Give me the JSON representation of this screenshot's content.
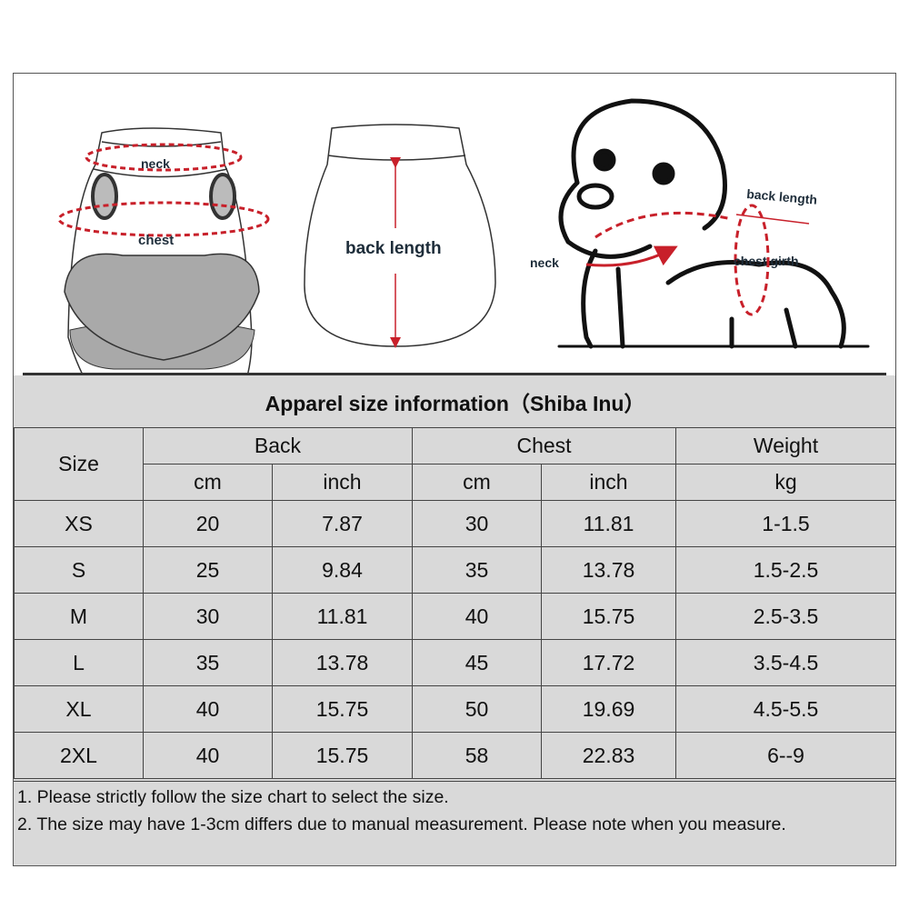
{
  "illustrations": {
    "garment_front": {
      "neck_label": "neck",
      "chest_label": "chest"
    },
    "garment_back": {
      "back_length_label": "back length"
    },
    "dog": {
      "back_length_label": "back length",
      "neck_label": "neck",
      "chest_girth_label": "chest girth"
    },
    "accent_color": "#c8202a"
  },
  "table": {
    "title": "Apparel  size  information（Shiba Inu）",
    "headers": {
      "size": "Size",
      "groups": [
        "Back",
        "Chest",
        "Weight"
      ],
      "units": [
        "cm",
        "inch",
        "cm",
        "inch",
        "kg"
      ]
    },
    "rows": [
      [
        "XS",
        "20",
        "7.87",
        "30",
        "11.81",
        "1-1.5"
      ],
      [
        "S",
        "25",
        "9.84",
        "35",
        "13.78",
        "1.5-2.5"
      ],
      [
        "M",
        "30",
        "11.81",
        "40",
        "15.75",
        "2.5-3.5"
      ],
      [
        "L",
        "35",
        "13.78",
        "45",
        "17.72",
        "3.5-4.5"
      ],
      [
        "XL",
        "40",
        "15.75",
        "50",
        "19.69",
        "4.5-5.5"
      ],
      [
        "2XL",
        "40",
        "15.75",
        "58",
        "22.83",
        "6--9"
      ]
    ],
    "background": "#d9d9d9"
  },
  "notes": [
    "1. Please strictly follow the size chart  to select the size.",
    "2. The size may have 1-3cm differs due to manual measurement. Please note when you measure."
  ]
}
